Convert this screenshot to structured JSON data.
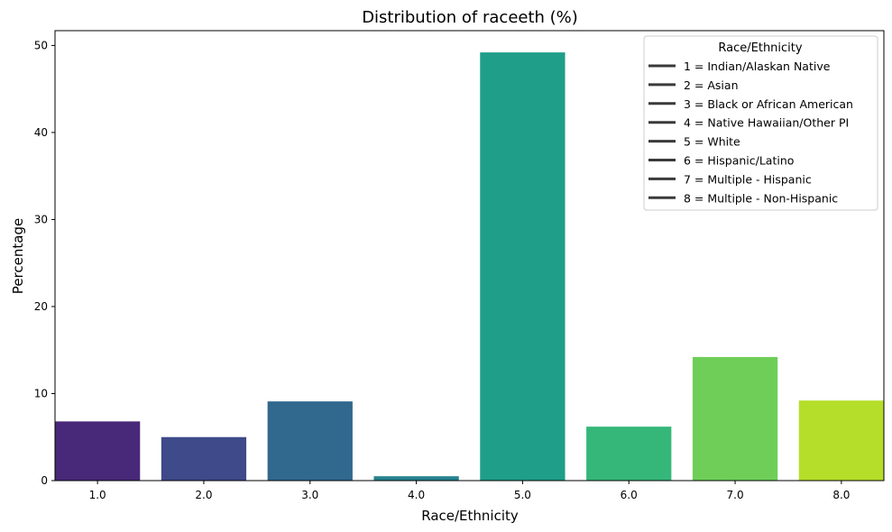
{
  "chart_data": {
    "type": "bar",
    "title": "Distribution of raceeth (%)",
    "xlabel": "Race/Ethnicity",
    "ylabel": "Percentage",
    "categories": [
      "1.0",
      "2.0",
      "3.0",
      "4.0",
      "5.0",
      "6.0",
      "7.0",
      "8.0"
    ],
    "values": [
      6.8,
      5.0,
      9.1,
      0.5,
      49.2,
      6.2,
      14.2,
      9.2
    ],
    "colors": [
      "#482878",
      "#3e4a89",
      "#31688e",
      "#26828e",
      "#1f9e89",
      "#35b779",
      "#6ece58",
      "#b5de2b"
    ],
    "ylim": [
      0,
      51.7
    ],
    "yticks": [
      "0",
      "10",
      "20",
      "30",
      "40",
      "50"
    ],
    "grid": false,
    "legend": {
      "title": "Race/Ethnicity",
      "placement": "top-right",
      "line_color": "#3a3a3a",
      "entries": [
        "1 = Indian/Alaskan Native",
        "2 = Asian",
        "3 = Black or African American",
        "4 = Native Hawaiian/Other PI",
        "5 = White",
        "6 = Hispanic/Latino",
        "7 = Multiple - Hispanic",
        "8 = Multiple - Non-Hispanic"
      ]
    }
  }
}
